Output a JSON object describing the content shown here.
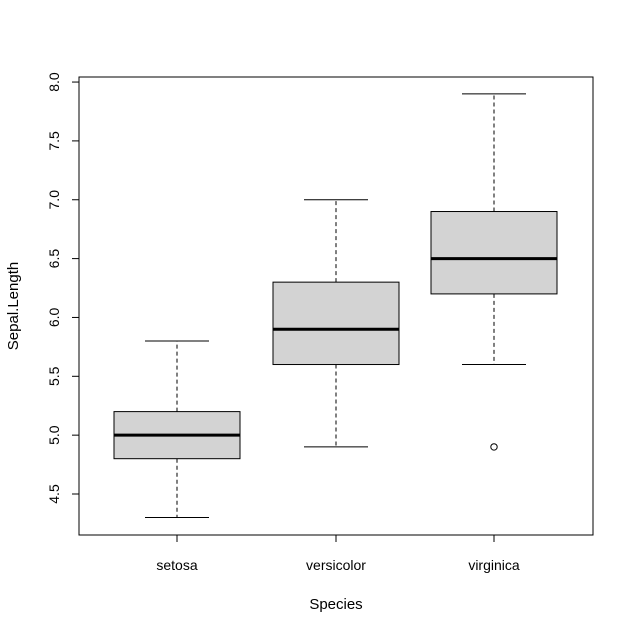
{
  "chart_data": {
    "type": "box",
    "xlabel": "Species",
    "ylabel": "Sepal.Length",
    "ylim": [
      4.2,
      8.1
    ],
    "yticks": [
      "4.5",
      "5.0",
      "5.5",
      "6.0",
      "6.5",
      "7.0",
      "7.5",
      "8.0"
    ],
    "box_fill": "#d3d3d3",
    "categories": [
      "setosa",
      "versicolor",
      "virginica"
    ],
    "boxes": [
      {
        "category": "setosa",
        "whisker_low": 4.3,
        "q1": 4.8,
        "median": 5.0,
        "q3": 5.2,
        "whisker_high": 5.8,
        "outliers": []
      },
      {
        "category": "versicolor",
        "whisker_low": 4.9,
        "q1": 5.6,
        "median": 5.9,
        "q3": 6.3,
        "whisker_high": 7.0,
        "outliers": []
      },
      {
        "category": "virginica",
        "whisker_low": 5.6,
        "q1": 6.2,
        "median": 6.5,
        "q3": 6.9,
        "whisker_high": 7.9,
        "outliers": [
          4.9
        ]
      }
    ]
  }
}
